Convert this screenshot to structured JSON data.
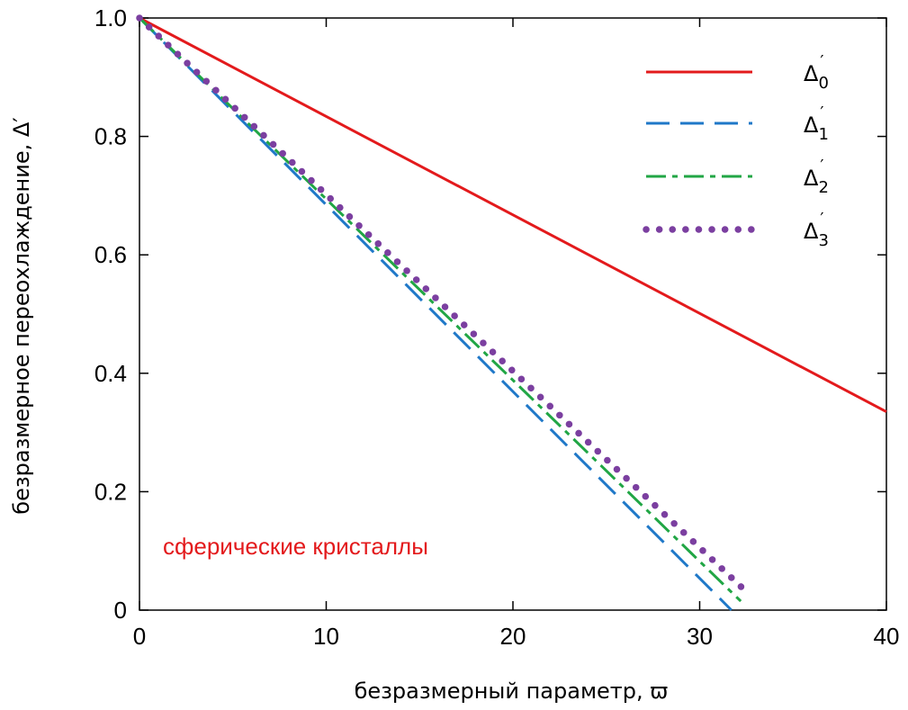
{
  "chart_data": {
    "type": "line",
    "xlabel": "безразмерный параметр, ϖ",
    "ylabel": "безразмерное переохлаждение, Δ′",
    "xlim": [
      0,
      40
    ],
    "ylim": [
      0,
      1.0
    ],
    "xticks": [
      0,
      10,
      20,
      30,
      40
    ],
    "xtick_labels": [
      "0",
      "10",
      "20",
      "30",
      "40"
    ],
    "yticks": [
      0,
      0.2,
      0.4,
      0.6,
      0.8,
      1.0
    ],
    "ytick_labels": [
      "0",
      "0.2",
      "0.4",
      "0.6",
      "0.8",
      "1.0"
    ],
    "grid": false,
    "legend_position": "top-right",
    "annotation": {
      "text": "сферические кристаллы",
      "color": "#e31a1c"
    },
    "series": [
      {
        "name": "Δ′0",
        "base": "Δ",
        "sub": "0",
        "color": "#e31a1c",
        "style": "solid",
        "x": [
          0,
          40
        ],
        "y": [
          1.0,
          0.335
        ]
      },
      {
        "name": "Δ′1",
        "base": "Δ",
        "sub": "1",
        "color": "#1f78c8",
        "style": "dashed",
        "x": [
          0,
          31.7
        ],
        "y": [
          1.0,
          0.0
        ]
      },
      {
        "name": "Δ′2",
        "base": "Δ",
        "sub": "2",
        "color": "#21a645",
        "style": "dashdot",
        "x": [
          0,
          32.2
        ],
        "y": [
          1.0,
          0.015
        ]
      },
      {
        "name": "Δ′3",
        "base": "Δ",
        "sub": "3",
        "color": "#7b3fa0",
        "style": "dotted",
        "x": [
          0,
          32.7
        ],
        "y": [
          1.0,
          0.025
        ]
      }
    ]
  }
}
